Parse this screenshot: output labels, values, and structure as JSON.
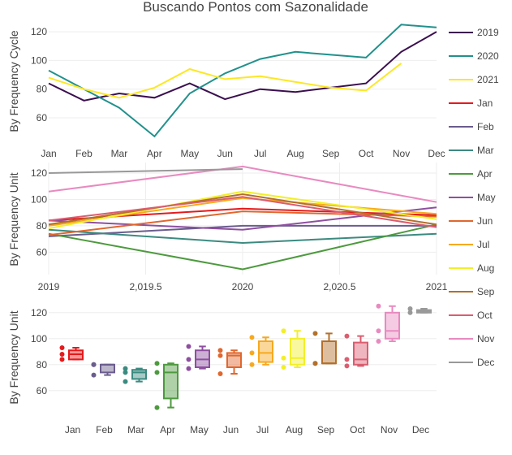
{
  "title": "Buscando Pontos com Sazonalidade",
  "legend": {
    "placement": "right",
    "items": [
      {
        "name": "2019",
        "color": "#3b0f4f",
        "symbol": "line"
      },
      {
        "name": "2020",
        "color": "#21918c",
        "symbol": "line"
      },
      {
        "name": "2021",
        "color": "#fde725",
        "symbol": "line"
      },
      {
        "name": "Jan",
        "color": "#e41a1c",
        "symbol": "line"
      },
      {
        "name": "Feb",
        "color": "#6a5d8e",
        "symbol": "line"
      },
      {
        "name": "Mar",
        "color": "#3b8a80",
        "symbol": "line"
      },
      {
        "name": "Apr",
        "color": "#4d9a3e",
        "symbol": "line"
      },
      {
        "name": "May",
        "color": "#8e4f9f",
        "symbol": "line"
      },
      {
        "name": "Jun",
        "color": "#e0672e",
        "symbol": "line"
      },
      {
        "name": "Jul",
        "color": "#f7a91e",
        "symbol": "line"
      },
      {
        "name": "Aug",
        "color": "#f2ef2a",
        "symbol": "line"
      },
      {
        "name": "Sep",
        "color": "#b3702b",
        "symbol": "line"
      },
      {
        "name": "Oct",
        "color": "#db5d70",
        "symbol": "line"
      },
      {
        "name": "Nov",
        "color": "#e88ac0",
        "symbol": "line"
      },
      {
        "name": "Dec",
        "color": "#999999",
        "symbol": "line"
      }
    ]
  },
  "chart_data": [
    {
      "type": "line",
      "ylabel": "By Frequency Cycle",
      "categories": [
        "Jan",
        "Feb",
        "Mar",
        "Apr",
        "May",
        "Jun",
        "Jul",
        "Aug",
        "Sep",
        "Oct",
        "Nov",
        "Dec"
      ],
      "yticks": [
        60,
        80,
        100,
        120
      ],
      "ylim": [
        43,
        128
      ],
      "grid": true,
      "series": [
        {
          "name": "2019",
          "color": "#3b0f4f",
          "values": [
            84,
            72,
            77,
            74,
            84,
            73,
            80,
            78,
            81,
            84,
            106,
            120
          ]
        },
        {
          "name": "2020",
          "color": "#21918c",
          "values": [
            93,
            80,
            67,
            47,
            77,
            91,
            101,
            106,
            104,
            102,
            125,
            123
          ]
        },
        {
          "name": "2021",
          "color": "#fde725",
          "values": [
            88,
            80,
            74,
            81,
            94,
            87,
            89,
            85,
            81,
            79,
            98,
            null
          ]
        }
      ]
    },
    {
      "type": "line",
      "ylabel": "By Frequency Unit",
      "x": [
        2019,
        2020,
        2021
      ],
      "xticks": [
        2019,
        2019.5,
        2020,
        2020.5,
        2021
      ],
      "xtick_labels": [
        "2019",
        "2,019.5",
        "2020",
        "2,020.5",
        "2021"
      ],
      "xlim": [
        2019,
        2021
      ],
      "yticks": [
        60,
        80,
        100,
        120
      ],
      "ylim": [
        43,
        128
      ],
      "grid": true,
      "series": [
        {
          "name": "Jan",
          "color": "#e41a1c",
          "values": [
            84,
            93,
            88
          ]
        },
        {
          "name": "Feb",
          "color": "#6a5d8e",
          "values": [
            72,
            80,
            80
          ]
        },
        {
          "name": "Mar",
          "color": "#3b8a80",
          "values": [
            77,
            67,
            74
          ]
        },
        {
          "name": "Apr",
          "color": "#4d9a3e",
          "values": [
            74,
            47,
            81
          ]
        },
        {
          "name": "May",
          "color": "#8e4f9f",
          "values": [
            84,
            77,
            94
          ]
        },
        {
          "name": "Jun",
          "color": "#e0672e",
          "values": [
            73,
            91,
            87
          ]
        },
        {
          "name": "Jul",
          "color": "#f7a91e",
          "values": [
            80,
            101,
            89
          ]
        },
        {
          "name": "Aug",
          "color": "#f2ef2a",
          "values": [
            78,
            106,
            85
          ]
        },
        {
          "name": "Sep",
          "color": "#b3702b",
          "values": [
            81,
            104,
            81
          ]
        },
        {
          "name": "Oct",
          "color": "#db5d70",
          "values": [
            84,
            102,
            79
          ]
        },
        {
          "name": "Nov",
          "color": "#e88ac0",
          "values": [
            106,
            125,
            98
          ]
        },
        {
          "name": "Dec",
          "color": "#999999",
          "values": [
            120,
            123,
            null
          ]
        }
      ]
    },
    {
      "type": "box",
      "ylabel": "By Frequency Unit",
      "categories": [
        "Jan",
        "Feb",
        "Mar",
        "Apr",
        "May",
        "Jun",
        "Jul",
        "Aug",
        "Sep",
        "Oct",
        "Nov",
        "Dec"
      ],
      "yticks": [
        60,
        80,
        100,
        120
      ],
      "ylim": [
        43,
        128
      ],
      "grid": true,
      "boxes": [
        {
          "name": "Jan",
          "color": "#e41a1c",
          "min": 84,
          "q1": 84,
          "median": 88,
          "q3": 91,
          "max": 93,
          "points": [
            84,
            93,
            88
          ]
        },
        {
          "name": "Feb",
          "color": "#6a5d8e",
          "min": 72,
          "q1": 74,
          "median": 80,
          "q3": 80,
          "max": 80,
          "points": [
            72,
            80,
            80
          ]
        },
        {
          "name": "Mar",
          "color": "#3b8a80",
          "min": 67,
          "q1": 69,
          "median": 74,
          "q3": 76,
          "max": 77,
          "points": [
            77,
            67,
            74
          ]
        },
        {
          "name": "Apr",
          "color": "#4d9a3e",
          "min": 47,
          "q1": 54,
          "median": 74,
          "q3": 80,
          "max": 81,
          "points": [
            74,
            47,
            81
          ]
        },
        {
          "name": "May",
          "color": "#8e4f9f",
          "min": 77,
          "q1": 78,
          "median": 84,
          "q3": 91,
          "max": 94,
          "points": [
            84,
            77,
            94
          ]
        },
        {
          "name": "Jun",
          "color": "#e0672e",
          "min": 73,
          "q1": 78,
          "median": 87,
          "q3": 89,
          "max": 91,
          "points": [
            73,
            91,
            87
          ]
        },
        {
          "name": "Jul",
          "color": "#f7a91e",
          "min": 80,
          "q1": 82,
          "median": 89,
          "q3": 98,
          "max": 101,
          "points": [
            80,
            101,
            89
          ]
        },
        {
          "name": "Aug",
          "color": "#f2ef2a",
          "min": 78,
          "q1": 80,
          "median": 85,
          "q3": 100,
          "max": 106,
          "points": [
            78,
            106,
            85
          ]
        },
        {
          "name": "Sep",
          "color": "#b3702b",
          "min": 81,
          "q1": 81,
          "median": 81,
          "q3": 98,
          "max": 104,
          "points": [
            81,
            104,
            81
          ]
        },
        {
          "name": "Oct",
          "color": "#db5d70",
          "min": 79,
          "q1": 80,
          "median": 84,
          "q3": 97,
          "max": 102,
          "points": [
            84,
            102,
            79
          ]
        },
        {
          "name": "Nov",
          "color": "#e88ac0",
          "min": 98,
          "q1": 100,
          "median": 106,
          "q3": 120,
          "max": 125,
          "points": [
            106,
            125,
            98
          ]
        },
        {
          "name": "Dec",
          "color": "#999999",
          "min": 120,
          "q1": 120,
          "median": 121,
          "q3": 122,
          "max": 123,
          "points": [
            120,
            123
          ]
        }
      ]
    }
  ]
}
